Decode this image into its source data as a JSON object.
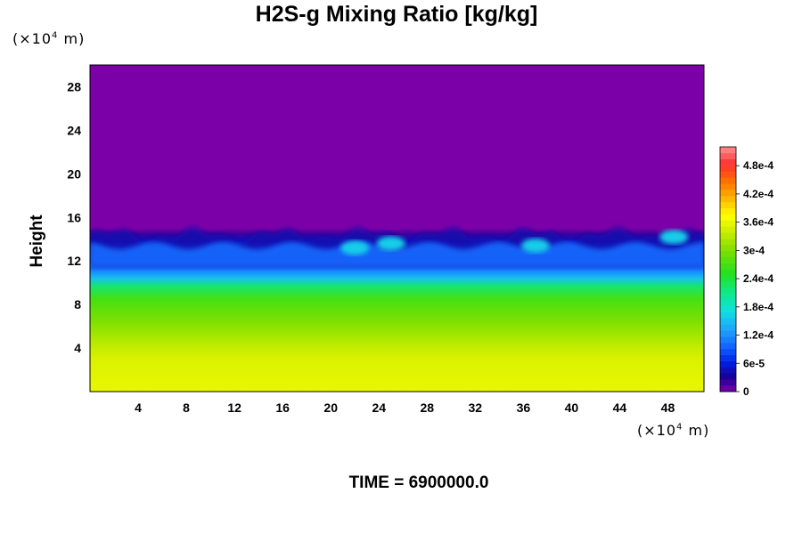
{
  "chart_data": {
    "type": "heatmap",
    "title": "H2S-g Mixing Ratio [kg/kg]",
    "ylabel": "Height",
    "x_unit": {
      "prefix": "(×10",
      "exponent": "4",
      "suffix": " m)"
    },
    "y_unit": {
      "prefix": "(×10",
      "exponent": "4",
      "suffix": " m)"
    },
    "xlim": [
      0,
      51
    ],
    "ylim": [
      0,
      30
    ],
    "x_ticks": [
      4,
      8,
      12,
      16,
      20,
      24,
      28,
      32,
      36,
      40,
      44,
      48
    ],
    "y_ticks": [
      4,
      8,
      12,
      16,
      20,
      24,
      28
    ],
    "colorbar": {
      "min": 0,
      "max": 0.00052,
      "tick_values": [
        0,
        6e-05,
        0.00012,
        0.00018,
        0.00024,
        0.0003,
        0.00036,
        0.00042,
        0.00048
      ],
      "tick_labels": [
        "0",
        "6e-5",
        "1.2e-4",
        "1.8e-4",
        "2.4e-4",
        "3e-4",
        "3.6e-4",
        "4.2e-4",
        "4.8e-4"
      ]
    },
    "vertical_profile": [
      {
        "height": 0,
        "value": 0.00036
      },
      {
        "height": 3,
        "value": 0.00035
      },
      {
        "height": 4.5,
        "value": 0.00033
      },
      {
        "height": 6.5,
        "value": 0.0003
      },
      {
        "height": 8.5,
        "value": 0.00027
      },
      {
        "height": 9.7,
        "value": 0.00022
      },
      {
        "height": 10.4,
        "value": 0.00015
      },
      {
        "height": 11.2,
        "value": 0.00011
      },
      {
        "height": 13.0,
        "value": 0.0001
      },
      {
        "height": 13.8,
        "value": 5e-05
      },
      {
        "height": 14.5,
        "value": 2e-05
      },
      {
        "height": 15.0,
        "value": 0
      },
      {
        "height": 30,
        "value": 0
      }
    ],
    "plumes": [
      {
        "x": 22,
        "height": 13.2
      },
      {
        "x": 25,
        "height": 13.6
      },
      {
        "x": 37,
        "height": 13.4
      },
      {
        "x": 48.5,
        "height": 14.2
      }
    ],
    "annotation": "TIME = 6900000.0"
  }
}
